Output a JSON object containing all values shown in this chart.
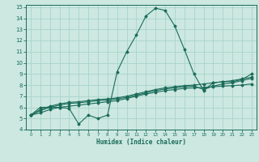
{
  "xlabel": "Humidex (Indice chaleur)",
  "xlim": [
    -0.5,
    23.5
  ],
  "ylim": [
    4,
    15.2
  ],
  "yticks": [
    4,
    5,
    6,
    7,
    8,
    9,
    10,
    11,
    12,
    13,
    14,
    15
  ],
  "xticks": [
    0,
    1,
    2,
    3,
    4,
    5,
    6,
    7,
    8,
    9,
    10,
    11,
    12,
    13,
    14,
    15,
    16,
    17,
    18,
    19,
    20,
    21,
    22,
    23
  ],
  "bg_color": "#cce8e0",
  "grid_color": "#a8d4cb",
  "line_color": "#1a6b5a",
  "lines": [
    [
      5.3,
      6.0,
      6.0,
      6.0,
      5.9,
      4.5,
      5.3,
      5.0,
      5.3,
      9.2,
      11.0,
      12.5,
      14.2,
      14.9,
      14.7,
      13.3,
      11.2,
      9.0,
      7.5,
      8.2,
      8.3,
      8.3,
      8.5,
      9.0
    ],
    [
      5.3,
      5.5,
      5.8,
      6.0,
      6.1,
      6.2,
      6.3,
      6.4,
      6.5,
      6.6,
      6.8,
      7.0,
      7.2,
      7.35,
      7.5,
      7.6,
      7.7,
      7.75,
      7.8,
      7.85,
      7.9,
      7.95,
      8.0,
      8.1
    ],
    [
      5.3,
      5.7,
      6.0,
      6.2,
      6.35,
      6.4,
      6.5,
      6.6,
      6.65,
      6.75,
      6.9,
      7.1,
      7.3,
      7.5,
      7.65,
      7.75,
      7.85,
      7.9,
      7.6,
      7.9,
      8.1,
      8.2,
      8.4,
      8.6
    ],
    [
      5.3,
      5.8,
      6.1,
      6.3,
      6.45,
      6.5,
      6.6,
      6.7,
      6.75,
      6.85,
      7.0,
      7.2,
      7.4,
      7.6,
      7.75,
      7.85,
      7.95,
      8.0,
      8.1,
      8.2,
      8.3,
      8.4,
      8.55,
      8.7
    ]
  ]
}
